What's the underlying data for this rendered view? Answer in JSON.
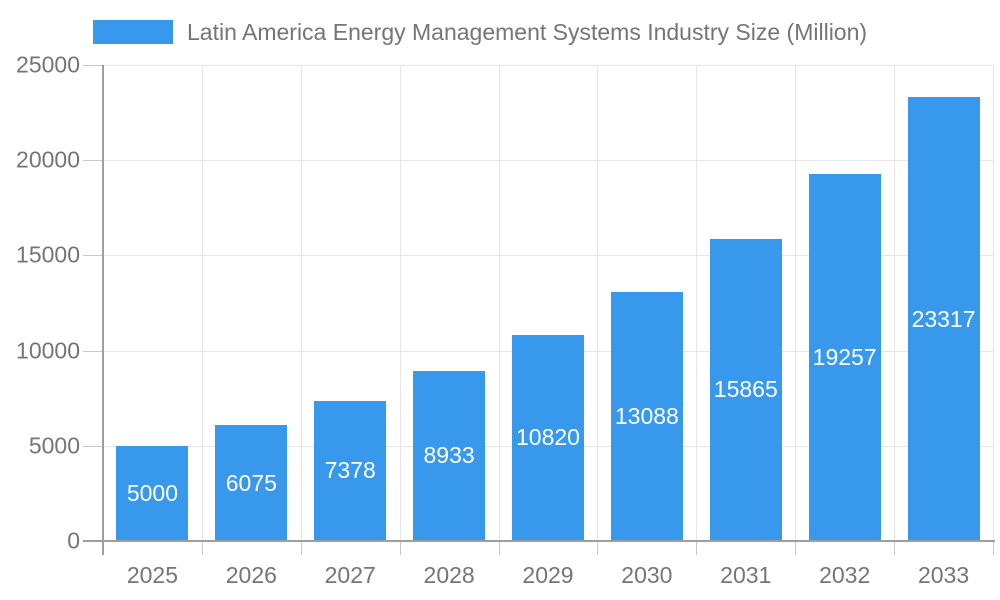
{
  "legend": {
    "label": "Latin America Energy Management Systems Industry Size (Million)"
  },
  "chart_data": {
    "type": "bar",
    "title": "",
    "categories": [
      "2025",
      "2026",
      "2027",
      "2028",
      "2029",
      "2030",
      "2031",
      "2032",
      "2033"
    ],
    "series": [
      {
        "name": "Latin America Energy Management Systems Industry Size (Million)",
        "values": [
          5000,
          6075,
          7378,
          8933,
          10820,
          13088,
          15865,
          19257,
          23317
        ]
      }
    ],
    "xlabel": "",
    "ylabel": "",
    "ylim": [
      0,
      25000
    ],
    "yticks": [
      0,
      5000,
      10000,
      15000,
      20000,
      25000
    ],
    "grid": true,
    "legend_position": "top",
    "value_label_position": "inside-center"
  },
  "colors": {
    "bar": "#3898EC",
    "bar_label": "#FFFFFF",
    "axis_text": "#757575",
    "legend_text": "#757575",
    "grid_line": "#E6E6E6",
    "tick_line": "#C8C8C8",
    "axis_line": "#9E9E9E",
    "background": "#FFFFFF"
  }
}
